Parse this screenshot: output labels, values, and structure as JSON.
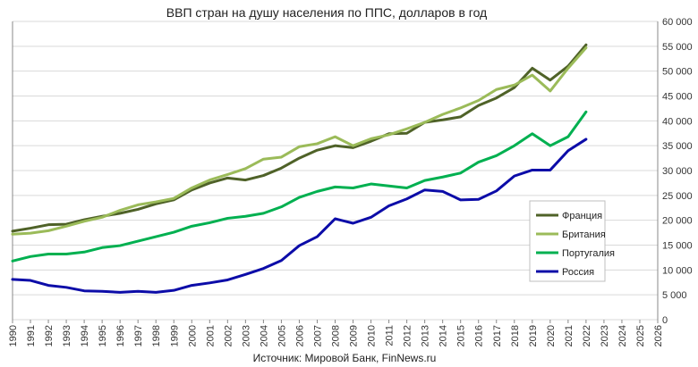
{
  "chart_data": {
    "type": "line",
    "title": "ВВП стран на душу населения по ППС, долларов в год",
    "source": "Источник: Мировой Банк, FinNews.ru",
    "xlabel": "",
    "ylabel": "",
    "xlim": [
      1990,
      2026
    ],
    "ylim": [
      0,
      60000
    ],
    "yticks": [
      0,
      5000,
      10000,
      15000,
      20000,
      25000,
      30000,
      35000,
      40000,
      45000,
      50000,
      55000,
      60000
    ],
    "ytick_labels": [
      "0",
      "5 000",
      "10 000",
      "15 000",
      "20 000",
      "25 000",
      "30 000",
      "35 000",
      "40 000",
      "45 000",
      "50 000",
      "55 000",
      "60 000"
    ],
    "x": [
      1990,
      1991,
      1992,
      1993,
      1994,
      1995,
      1996,
      1997,
      1998,
      1999,
      2000,
      2001,
      2002,
      2003,
      2004,
      2005,
      2006,
      2007,
      2008,
      2009,
      2010,
      2011,
      2012,
      2013,
      2014,
      2015,
      2016,
      2017,
      2018,
      2019,
      2020,
      2021,
      2022
    ],
    "xtick_labels": [
      "1990",
      "1991",
      "1992",
      "1993",
      "1994",
      "1995",
      "1996",
      "1997",
      "1998",
      "1999",
      "2000",
      "2001",
      "2002",
      "2003",
      "2004",
      "2005",
      "2006",
      "2007",
      "2008",
      "2009",
      "2010",
      "2011",
      "2012",
      "2013",
      "2014",
      "2015",
      "2016",
      "2017",
      "2018",
      "2019",
      "2020",
      "2021",
      "2022",
      "2023",
      "2024",
      "2025",
      "2026"
    ],
    "grid": true,
    "legend_position": "right",
    "y_axis_side": "right",
    "series": [
      {
        "name": "Франция",
        "color": "#4f6228",
        "values": [
          17800,
          18400,
          19100,
          19200,
          20100,
          20800,
          21400,
          22200,
          23300,
          24100,
          26100,
          27500,
          28500,
          28100,
          29000,
          30500,
          32500,
          34100,
          35000,
          34600,
          35900,
          37400,
          37500,
          39700,
          40200,
          40800,
          43100,
          44600,
          46700,
          50600,
          48200,
          51000,
          55300
        ]
      },
      {
        "name": "Британия",
        "color": "#9bbb59",
        "values": [
          17200,
          17400,
          17900,
          18800,
          19800,
          20600,
          22000,
          23100,
          23700,
          24400,
          26500,
          28100,
          29200,
          30400,
          32300,
          32700,
          34800,
          35400,
          36800,
          35000,
          36400,
          37200,
          38400,
          39700,
          41300,
          42600,
          44100,
          46300,
          47200,
          49200,
          46000,
          50600,
          54700
        ]
      },
      {
        "name": "Португалия",
        "color": "#00b050",
        "values": [
          11800,
          12700,
          13200,
          13200,
          13600,
          14500,
          14900,
          15800,
          16700,
          17600,
          18800,
          19500,
          20400,
          20800,
          21400,
          22700,
          24600,
          25800,
          26700,
          26500,
          27300,
          26900,
          26500,
          28000,
          28700,
          29500,
          31700,
          33000,
          35000,
          37400,
          35000,
          36800,
          41800
        ]
      },
      {
        "name": "Россия",
        "color": "#0c0ca8",
        "values": [
          8100,
          7900,
          6900,
          6500,
          5800,
          5700,
          5500,
          5700,
          5500,
          5900,
          6900,
          7400,
          8000,
          9100,
          10300,
          11900,
          14900,
          16700,
          20300,
          19400,
          20600,
          22900,
          24300,
          26100,
          25800,
          24100,
          24200,
          25900,
          28900,
          30100,
          30100,
          34000,
          36300
        ]
      }
    ]
  }
}
